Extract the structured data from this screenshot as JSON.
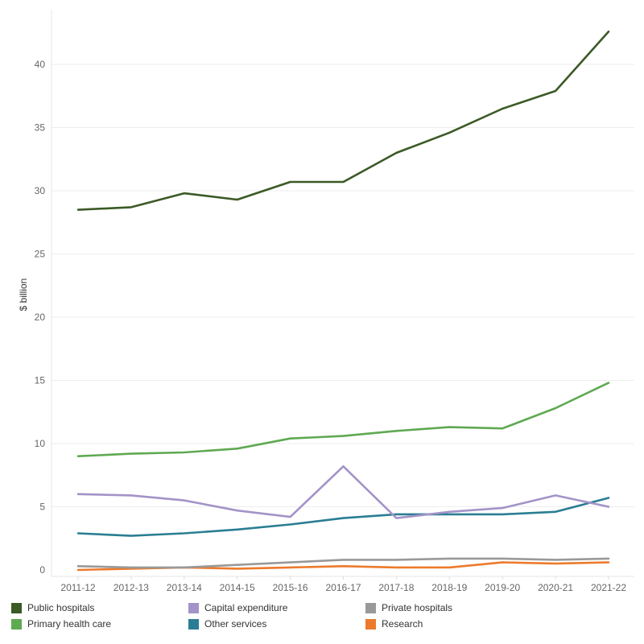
{
  "chart_data": {
    "type": "line",
    "ylabel": "$ billion",
    "xlabel": "",
    "ylim": [
      0,
      45
    ],
    "yticks": [
      0,
      5,
      10,
      15,
      20,
      25,
      30,
      35,
      40
    ],
    "categories": [
      "2011-12",
      "2012-13",
      "2013-14",
      "2014-15",
      "2015-16",
      "2016-17",
      "2017-18",
      "2018-19",
      "2019-20",
      "2020-21",
      "2021-22"
    ],
    "grid": "horizontal",
    "legend_placement": "bottom",
    "series": [
      {
        "name": "Public hospitals",
        "color": "#3b5a26",
        "values": [
          28.5,
          28.7,
          29.8,
          29.3,
          30.7,
          30.7,
          33.0,
          34.6,
          36.5,
          37.9,
          42.6
        ]
      },
      {
        "name": "Primary health care",
        "color": "#5fa952",
        "values": [
          9.0,
          9.2,
          9.3,
          9.6,
          10.4,
          10.6,
          11.0,
          11.3,
          11.2,
          12.8,
          14.8
        ]
      },
      {
        "name": "Capital expenditure",
        "color": "#a393c8",
        "values": [
          6.0,
          5.9,
          5.5,
          4.7,
          4.2,
          8.2,
          4.1,
          4.6,
          4.9,
          5.9,
          5.0
        ]
      },
      {
        "name": "Other services",
        "color": "#2a7e93",
        "values": [
          2.9,
          2.7,
          2.9,
          3.2,
          3.6,
          4.1,
          4.4,
          4.4,
          4.4,
          4.6,
          5.7
        ]
      },
      {
        "name": "Private hospitals",
        "color": "#999999",
        "values": [
          0.3,
          0.2,
          0.2,
          0.4,
          0.6,
          0.8,
          0.8,
          0.9,
          0.9,
          0.8,
          0.9
        ]
      },
      {
        "name": "Research",
        "color": "#ec7a2c",
        "values": [
          0.0,
          0.1,
          0.2,
          0.1,
          0.2,
          0.3,
          0.2,
          0.2,
          0.6,
          0.5,
          0.6
        ]
      }
    ]
  }
}
